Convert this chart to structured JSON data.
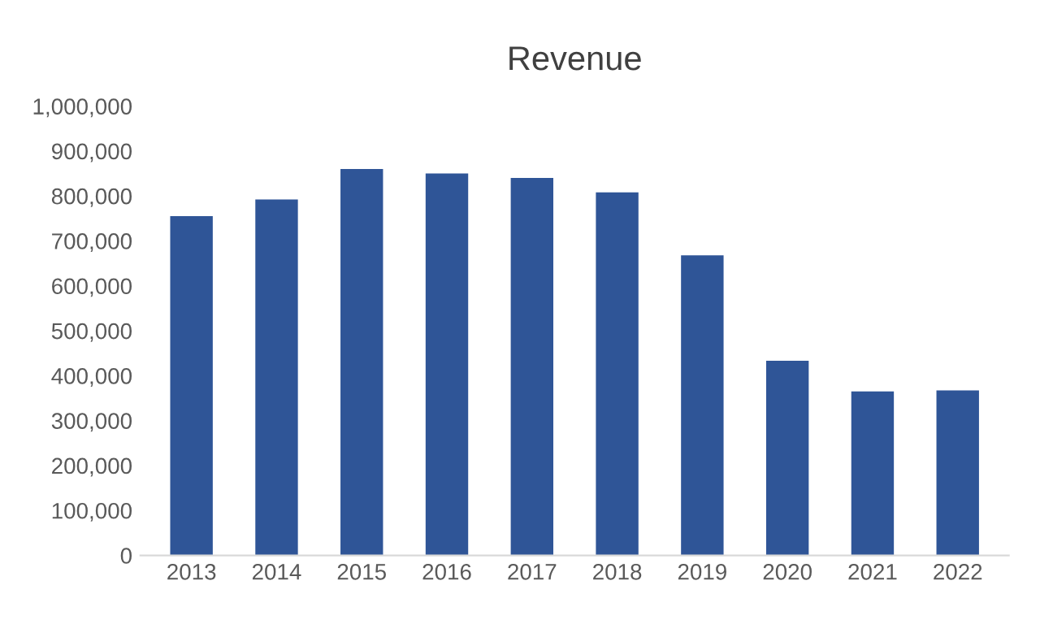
{
  "chart_data": {
    "type": "bar",
    "title": "Revenue",
    "categories": [
      "2013",
      "2014",
      "2015",
      "2016",
      "2017",
      "2018",
      "2019",
      "2020",
      "2021",
      "2022"
    ],
    "values": [
      755000,
      792000,
      860000,
      850000,
      840000,
      808000,
      668000,
      433000,
      365000,
      367000
    ],
    "color": "#2f5597",
    "ylim": [
      0,
      1000000
    ],
    "yticks": [
      {
        "value": 0,
        "label": "0"
      },
      {
        "value": 100000,
        "label": "100,000"
      },
      {
        "value": 200000,
        "label": "200,000"
      },
      {
        "value": 300000,
        "label": "300,000"
      },
      {
        "value": 400000,
        "label": "400,000"
      },
      {
        "value": 500000,
        "label": "500,000"
      },
      {
        "value": 600000,
        "label": "600,000"
      },
      {
        "value": 700000,
        "label": "700,000"
      },
      {
        "value": 800000,
        "label": "800,000"
      },
      {
        "value": 900000,
        "label": "900,000"
      },
      {
        "value": 1000000,
        "label": "1,000,000"
      }
    ],
    "grid": false
  }
}
